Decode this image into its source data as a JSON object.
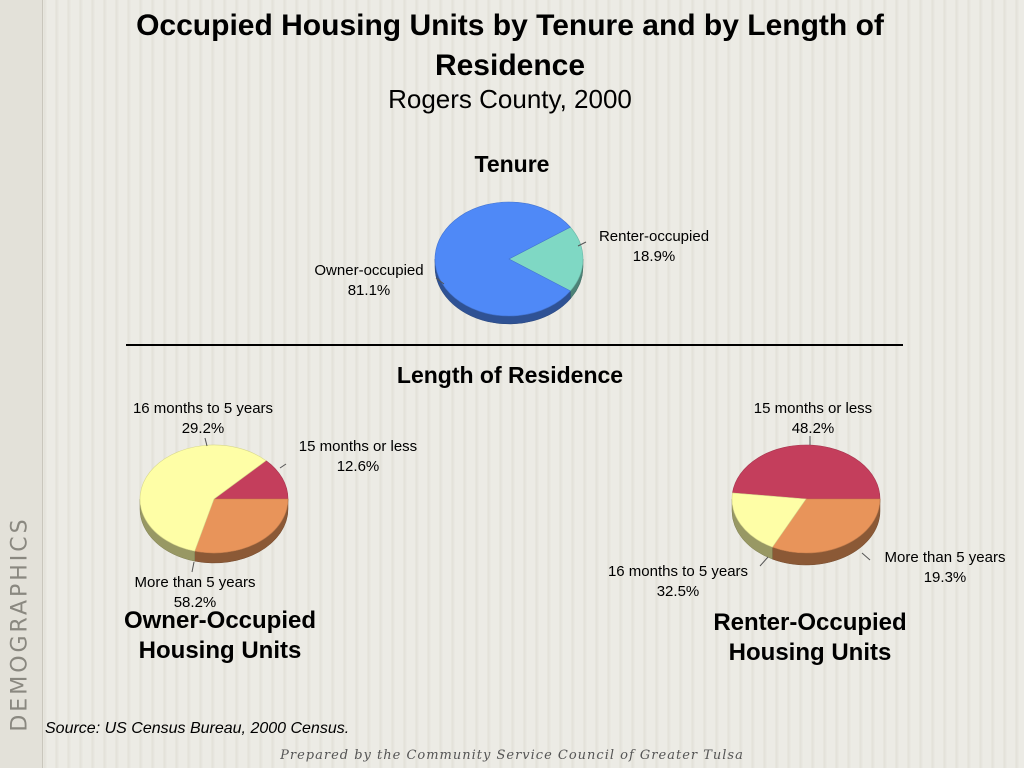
{
  "sidebar": {
    "label": "DEMOGRAPHICS"
  },
  "header": {
    "title": "Occupied Housing Units by Tenure and by Length of Residence",
    "subtitle": "Rogers County, 2000"
  },
  "sections": {
    "tenure": "Tenure",
    "length": "Length of Residence"
  },
  "captions": {
    "owner": [
      "Owner-Occupied",
      "Housing Units"
    ],
    "renter": [
      "Renter-Occupied",
      "Housing Units"
    ]
  },
  "source": "Source:  US Census Bureau, 2000 Census.",
  "footer": "Prepared by the Community Service Council of Greater Tulsa",
  "chart_data": [
    {
      "type": "pie",
      "title": "Tenure",
      "slices": [
        {
          "label": "Renter-occupied",
          "value": 18.9,
          "display": "18.9%",
          "color": "#7fd8c4"
        },
        {
          "label": "Owner-occupied",
          "value": 81.1,
          "display": "81.1%",
          "color": "#4f89f7"
        }
      ]
    },
    {
      "type": "pie",
      "title": "Owner-Occupied Housing Units",
      "slices": [
        {
          "label": "15 months or less",
          "value": 12.6,
          "display": "12.6%",
          "color": "#c43e5c"
        },
        {
          "label": "16 months to 5 years",
          "value": 29.2,
          "display": "29.2%",
          "color": "#e8945a"
        },
        {
          "label": "More than 5 years",
          "value": 58.2,
          "display": "58.2%",
          "color": "#fefea6"
        }
      ]
    },
    {
      "type": "pie",
      "title": "Renter-Occupied Housing Units",
      "slices": [
        {
          "label": "15 months or less",
          "value": 48.2,
          "display": "48.2%",
          "color": "#c43e5c"
        },
        {
          "label": "16 months to 5 years",
          "value": 32.5,
          "display": "32.5%",
          "color": "#e8945a"
        },
        {
          "label": "More than 5 years",
          "value": 19.3,
          "display": "19.3%",
          "color": "#fefea6"
        }
      ]
    }
  ]
}
